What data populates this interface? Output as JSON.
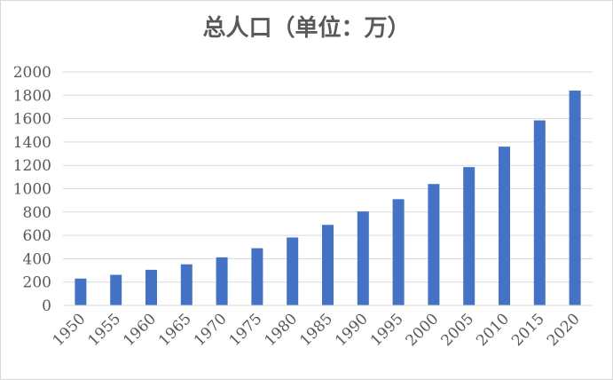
{
  "chart_data": {
    "type": "bar",
    "title": "总人口（单位：万）",
    "xlabel": "",
    "ylabel": "",
    "categories": [
      "1950",
      "1955",
      "1960",
      "1965",
      "1970",
      "1975",
      "1980",
      "1985",
      "1990",
      "1995",
      "2000",
      "2005",
      "2010",
      "2015",
      "2020"
    ],
    "values": [
      230,
      262,
      305,
      352,
      412,
      490,
      582,
      690,
      805,
      910,
      1040,
      1185,
      1360,
      1585,
      1840
    ],
    "ylim": [
      0,
      2000
    ],
    "yticks": [
      "0",
      "200",
      "400",
      "600",
      "800",
      "1000",
      "1200",
      "1400",
      "1600",
      "1800",
      "2000"
    ],
    "grid": true,
    "legend": "none",
    "bar_color": "#4472c4",
    "grid_color": "#d9d9d9"
  }
}
